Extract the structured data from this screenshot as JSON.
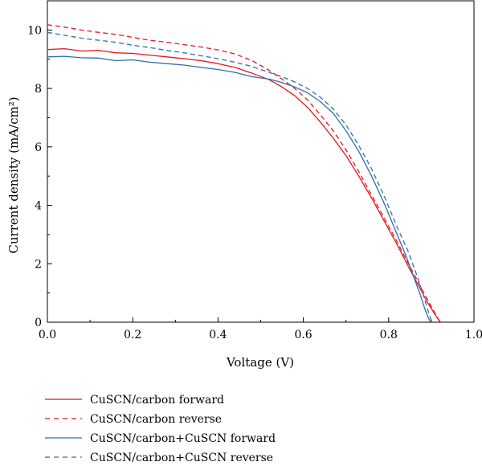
{
  "chart_data": {
    "type": "line",
    "title": "",
    "xlabel": "Voltage (V)",
    "ylabel": "Current density (mA/cm²)",
    "xlim": [
      0.0,
      1.0
    ],
    "ylim": [
      0,
      11
    ],
    "xticks": [
      "0.0",
      "0.2",
      "0.4",
      "0.6",
      "0.8",
      "1.0"
    ],
    "yticks": [
      "0",
      "2",
      "4",
      "6",
      "8",
      "10"
    ],
    "grid": false,
    "legend_position": "bottom",
    "series": [
      {
        "name": "CuSCN/carbon forward",
        "color": "#e8141b",
        "dash": "solid",
        "x": [
          0.0,
          0.04,
          0.08,
          0.12,
          0.16,
          0.2,
          0.24,
          0.28,
          0.32,
          0.36,
          0.4,
          0.44,
          0.48,
          0.52,
          0.55,
          0.58,
          0.61,
          0.64,
          0.67,
          0.7,
          0.73,
          0.76,
          0.79,
          0.82,
          0.85,
          0.87,
          0.89,
          0.905,
          0.915,
          0.922
        ],
        "y": [
          9.33,
          9.36,
          9.28,
          9.3,
          9.22,
          9.2,
          9.14,
          9.08,
          9.02,
          8.95,
          8.85,
          8.72,
          8.52,
          8.3,
          8.05,
          7.75,
          7.35,
          6.85,
          6.3,
          5.7,
          5.0,
          4.25,
          3.45,
          2.65,
          1.8,
          1.25,
          0.7,
          0.35,
          0.12,
          0.0
        ]
      },
      {
        "name": "CuSCN/carbon reverse",
        "color": "#e8141b",
        "dash": "dashed",
        "x": [
          0.0,
          0.04,
          0.08,
          0.12,
          0.16,
          0.2,
          0.24,
          0.28,
          0.32,
          0.36,
          0.4,
          0.44,
          0.48,
          0.52,
          0.55,
          0.58,
          0.61,
          0.64,
          0.67,
          0.7,
          0.73,
          0.76,
          0.79,
          0.82,
          0.85,
          0.87,
          0.89,
          0.905,
          0.915,
          0.92
        ],
        "y": [
          10.18,
          10.1,
          10.0,
          9.92,
          9.85,
          9.75,
          9.65,
          9.58,
          9.5,
          9.42,
          9.32,
          9.18,
          8.95,
          8.62,
          8.32,
          8.0,
          7.6,
          7.1,
          6.55,
          5.9,
          5.15,
          4.35,
          3.55,
          2.75,
          1.9,
          1.35,
          0.8,
          0.4,
          0.15,
          0.0
        ]
      },
      {
        "name": "CuSCN/carbon+CuSCN forward",
        "color": "#2f6ea8",
        "dash": "solid",
        "x": [
          0.0,
          0.04,
          0.08,
          0.12,
          0.16,
          0.2,
          0.24,
          0.28,
          0.32,
          0.36,
          0.4,
          0.44,
          0.48,
          0.52,
          0.55,
          0.58,
          0.61,
          0.64,
          0.67,
          0.7,
          0.73,
          0.76,
          0.79,
          0.82,
          0.84,
          0.86,
          0.875,
          0.885,
          0.893,
          0.898
        ],
        "y": [
          9.08,
          9.1,
          9.05,
          9.04,
          8.95,
          8.98,
          8.9,
          8.85,
          8.8,
          8.72,
          8.65,
          8.55,
          8.4,
          8.32,
          8.2,
          8.05,
          7.85,
          7.55,
          7.15,
          6.55,
          5.85,
          5.0,
          4.05,
          3.0,
          2.3,
          1.5,
          0.9,
          0.45,
          0.15,
          0.0
        ]
      },
      {
        "name": "CuSCN/carbon+CuSCN reverse",
        "color": "#2f6ea8",
        "dash": "dashed",
        "x": [
          0.0,
          0.04,
          0.08,
          0.12,
          0.16,
          0.2,
          0.24,
          0.28,
          0.32,
          0.36,
          0.4,
          0.44,
          0.48,
          0.52,
          0.55,
          0.58,
          0.61,
          0.64,
          0.67,
          0.7,
          0.73,
          0.76,
          0.79,
          0.82,
          0.845,
          0.865,
          0.88,
          0.89,
          0.897,
          0.902
        ],
        "y": [
          9.92,
          9.82,
          9.72,
          9.65,
          9.58,
          9.48,
          9.4,
          9.3,
          9.22,
          9.12,
          9.02,
          8.9,
          8.75,
          8.55,
          8.4,
          8.22,
          8.0,
          7.7,
          7.3,
          6.75,
          6.05,
          5.25,
          4.3,
          3.25,
          2.45,
          1.65,
          1.0,
          0.5,
          0.18,
          0.0
        ]
      }
    ]
  }
}
